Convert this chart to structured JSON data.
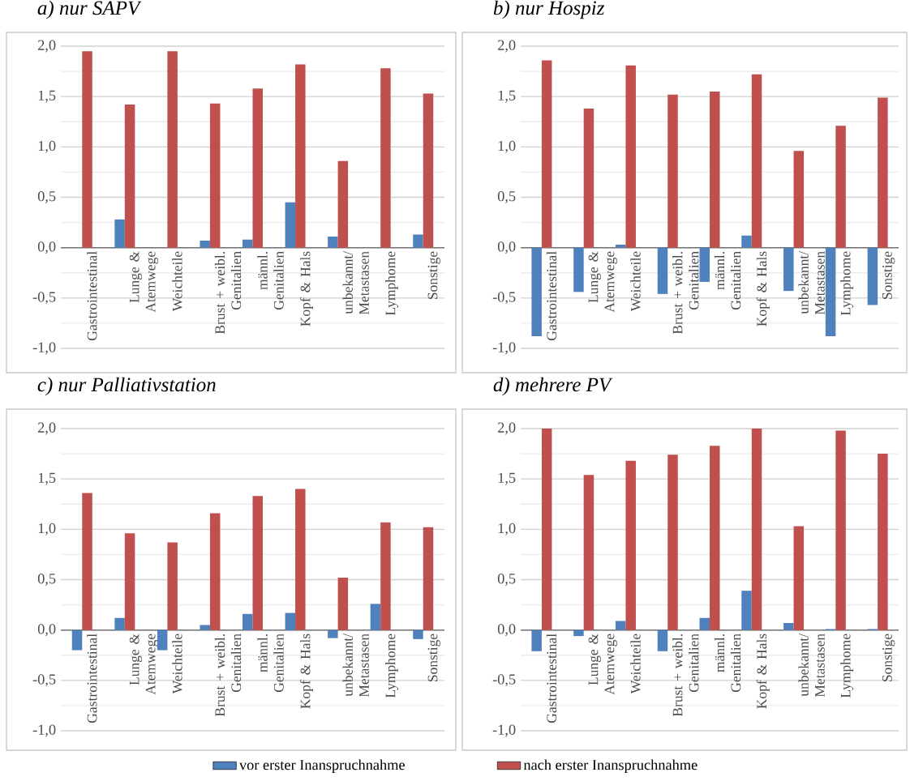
{
  "chart_data": [
    {
      "type": "bar",
      "title": "a) nur SAPV",
      "categories": [
        "Gastrointestinal",
        "Lunge & Atemwege",
        "Weichteile",
        "Brust + weibl. Genitalien",
        "männl. Genitalien",
        "Kopf & Hals",
        "unbekannt/ Metastasen",
        "Lymphome",
        "Sonstige"
      ],
      "series": [
        {
          "color": "#4f81bd",
          "values": [
            0,
            0.28,
            0,
            0.07,
            0.08,
            0.45,
            0.11,
            0,
            0.13
          ]
        },
        {
          "color": "#c0504d",
          "values": [
            1.95,
            1.42,
            1.95,
            1.43,
            1.58,
            1.82,
            0.86,
            1.78,
            1.53
          ]
        }
      ],
      "ylim": [
        -1,
        2
      ],
      "yticks": [
        {
          "value": -1,
          "label": "-1,0"
        },
        {
          "value": -0.5,
          "label": "-0,5"
        },
        {
          "value": 0,
          "label": "0,0"
        },
        {
          "value": 0.5,
          "label": "0,5"
        },
        {
          "value": 1,
          "label": "1,0"
        },
        {
          "value": 1.5,
          "label": "1,5"
        },
        {
          "value": 2,
          "label": "2,0"
        }
      ],
      "grid": "y"
    },
    {
      "type": "bar",
      "title": "b) nur Hospiz",
      "categories": [
        "Gastrointestinal",
        "Lunge & Atemwege",
        "Weichteile",
        "Brust + weibl. Genitalien",
        "männl. Genitalien",
        "Kopf & Hals",
        "unbekannt/ Metastasen",
        "Lymphome",
        "Sonstige"
      ],
      "series": [
        {
          "color": "#4f81bd",
          "values": [
            -0.88,
            -0.44,
            0.03,
            -0.46,
            -0.34,
            0.12,
            -0.43,
            -0.88,
            -0.57
          ]
        },
        {
          "color": "#c0504d",
          "values": [
            1.86,
            1.38,
            1.81,
            1.52,
            1.55,
            1.72,
            0.96,
            1.21,
            1.49
          ]
        }
      ],
      "ylim": [
        -1,
        2
      ],
      "yticks": [
        {
          "value": -1,
          "label": "-1,0"
        },
        {
          "value": -0.5,
          "label": "-0,5"
        },
        {
          "value": 0,
          "label": "0,0"
        },
        {
          "value": 0.5,
          "label": "0,5"
        },
        {
          "value": 1,
          "label": "1,0"
        },
        {
          "value": 1.5,
          "label": "1,5"
        },
        {
          "value": 2,
          "label": "2,0"
        }
      ],
      "grid": "y"
    },
    {
      "type": "bar",
      "title": "c) nur Palliativstation",
      "categories": [
        "Gastrointestinal",
        "Lunge & Atemwege",
        "Weichteile",
        "Brust + weibl. Genitalien",
        "männl. Genitalien",
        "Kopf & Hals",
        "unbekannt/ Metastasen",
        "Lymphome",
        "Sonstige"
      ],
      "series": [
        {
          "color": "#4f81bd",
          "values": [
            -0.2,
            0.12,
            -0.2,
            0.05,
            0.16,
            0.17,
            -0.08,
            0.26,
            -0.09
          ]
        },
        {
          "color": "#c0504d",
          "values": [
            1.36,
            0.96,
            0.87,
            1.16,
            1.33,
            1.4,
            0.52,
            1.07,
            1.02
          ]
        }
      ],
      "ylim": [
        -1,
        2
      ],
      "yticks": [
        {
          "value": -1,
          "label": "-1,0"
        },
        {
          "value": -0.5,
          "label": "-0,5"
        },
        {
          "value": 0,
          "label": "0,0"
        },
        {
          "value": 0.5,
          "label": "0,5"
        },
        {
          "value": 1,
          "label": "1,0"
        },
        {
          "value": 1.5,
          "label": "1,5"
        },
        {
          "value": 2,
          "label": "2,0"
        }
      ],
      "grid": "y"
    },
    {
      "type": "bar",
      "title": "d) mehrere PV",
      "categories": [
        "Gastrointestinal",
        "Lunge & Atemwege",
        "Weichteile",
        "Brust + weibl. Genitalien",
        "männl. Genitalien",
        "Kopf & Hals",
        "unbekannt/ Metastasen",
        "Lymphome",
        "Sonstige"
      ],
      "series": [
        {
          "name": "vor erster Inanspruchnahme",
          "color": "#4f81bd",
          "values": [
            -0.21,
            -0.06,
            0.09,
            -0.21,
            0.12,
            0.39,
            0.07,
            0.01,
            0.01
          ]
        },
        {
          "name": "nach erster Inanspruchnahme",
          "color": "#c0504d",
          "values": [
            2.0,
            1.54,
            1.68,
            1.74,
            1.83,
            2.0,
            1.03,
            1.98,
            1.75
          ]
        }
      ],
      "ylim": [
        -1,
        2
      ],
      "yticks": [
        {
          "value": -1,
          "label": "-1,0"
        },
        {
          "value": -0.5,
          "label": "-0,5"
        },
        {
          "value": 0,
          "label": "0,0"
        },
        {
          "value": 0.5,
          "label": "0,5"
        },
        {
          "value": 1,
          "label": "1,0"
        },
        {
          "value": 1.5,
          "label": "1,5"
        },
        {
          "value": 2,
          "label": "2,0"
        }
      ],
      "grid": "y",
      "legend": "bottom"
    }
  ]
}
